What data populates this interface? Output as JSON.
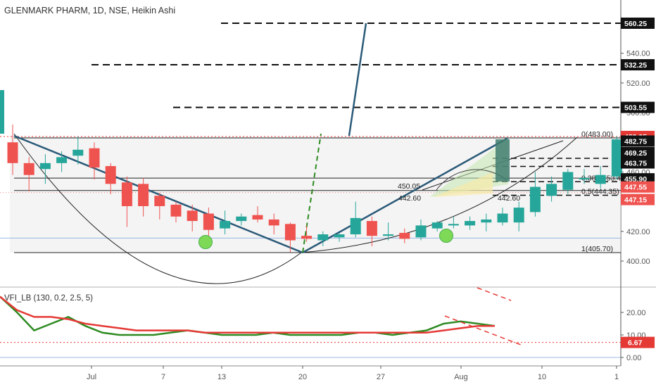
{
  "header": {
    "title": "GLENMARK PHARM, 1D, NSE, Heikin Ashi"
  },
  "indicator": {
    "title": "VFI_LB (130, 0.2, 2.5, 5)"
  },
  "colors": {
    "up": "#26a69a",
    "down": "#ef5350",
    "vfi": "#2e8b22",
    "signal": "#e53935"
  },
  "chart_data": [
    {
      "type": "candlestick",
      "title": "GLENMARK PHARM, 1D, NSE, Heikin Ashi",
      "x_labels": [
        "Jul",
        "7",
        "13",
        "20",
        "27",
        "Aug",
        "10",
        "1"
      ],
      "y_ticks": [
        400.0,
        420.0,
        440.0,
        460.0,
        480.0,
        500.0,
        520.0,
        540.0
      ],
      "ylim": [
        386,
        572
      ],
      "candles": [
        {
          "o": 480,
          "h": 492,
          "l": 458,
          "c": 466
        },
        {
          "o": 466,
          "h": 470,
          "l": 447,
          "c": 458
        },
        {
          "o": 462,
          "h": 472,
          "l": 452,
          "c": 466
        },
        {
          "o": 466,
          "h": 474,
          "l": 460,
          "c": 470
        },
        {
          "o": 471,
          "h": 484,
          "l": 465,
          "c": 475
        },
        {
          "o": 476,
          "h": 480,
          "l": 455,
          "c": 463
        },
        {
          "o": 464,
          "h": 466,
          "l": 445,
          "c": 452
        },
        {
          "o": 453,
          "h": 457,
          "l": 423,
          "c": 437
        },
        {
          "o": 452,
          "h": 456,
          "l": 430,
          "c": 437
        },
        {
          "o": 444,
          "h": 446,
          "l": 428,
          "c": 437
        },
        {
          "o": 438,
          "h": 440,
          "l": 426,
          "c": 430
        },
        {
          "o": 434,
          "h": 438,
          "l": 420,
          "c": 427
        },
        {
          "o": 432,
          "h": 436,
          "l": 416,
          "c": 421
        },
        {
          "o": 422,
          "h": 434,
          "l": 418,
          "c": 427
        },
        {
          "o": 427,
          "h": 432,
          "l": 424,
          "c": 430
        },
        {
          "o": 431,
          "h": 437,
          "l": 426,
          "c": 428
        },
        {
          "o": 428,
          "h": 432,
          "l": 418,
          "c": 424
        },
        {
          "o": 425,
          "h": 426,
          "l": 406,
          "c": 414
        },
        {
          "o": 417,
          "h": 424,
          "l": 413,
          "c": 415
        },
        {
          "o": 414,
          "h": 420,
          "l": 410,
          "c": 418
        },
        {
          "o": 416,
          "h": 419,
          "l": 413,
          "c": 418
        },
        {
          "o": 418,
          "h": 440,
          "l": 416,
          "c": 429
        },
        {
          "o": 427,
          "h": 430,
          "l": 410,
          "c": 417
        },
        {
          "o": 417,
          "h": 426,
          "l": 414,
          "c": 418
        },
        {
          "o": 419,
          "h": 422,
          "l": 412,
          "c": 415
        },
        {
          "o": 416,
          "h": 428,
          "l": 414,
          "c": 424
        },
        {
          "o": 422,
          "h": 427,
          "l": 420,
          "c": 426
        },
        {
          "o": 424,
          "h": 430,
          "l": 422,
          "c": 425
        },
        {
          "o": 424,
          "h": 430,
          "l": 421,
          "c": 427
        },
        {
          "o": 426,
          "h": 432,
          "l": 420,
          "c": 428
        },
        {
          "o": 426,
          "h": 436,
          "l": 424,
          "c": 432
        },
        {
          "o": 426,
          "h": 440,
          "l": 420,
          "c": 436
        },
        {
          "o": 433,
          "h": 460,
          "l": 430,
          "c": 450
        },
        {
          "o": 444,
          "h": 457,
          "l": 440,
          "c": 452
        },
        {
          "o": 448,
          "h": 462,
          "l": 445,
          "c": 460
        },
        {
          "o": 455,
          "h": 462,
          "l": 452,
          "c": 456
        },
        {
          "o": 452,
          "h": 464,
          "l": 449,
          "c": 458
        },
        {
          "o": 457,
          "h": 484,
          "l": 455,
          "c": 482
        }
      ],
      "price_labels": [
        "560.25",
        "532.25",
        "503.55",
        "483.95",
        "482.75",
        "469.25",
        "463.75",
        "455.90",
        "447.55",
        "447.15"
      ],
      "price_label_values": [
        560.25,
        532.25,
        503.55,
        483.95,
        482.75,
        469.25,
        463.75,
        455.9,
        447.55,
        447.15
      ],
      "target_levels": [
        560.25,
        532.25,
        503.55
      ],
      "fib_levels": [
        {
          "label": "0(483.00)",
          "value": 483.0
        },
        {
          "label": "0.382(453.45)",
          "value": 453.45
        },
        {
          "label": "0.5(444.35)",
          "value": 444.35
        },
        {
          "label": "1(405.70)",
          "value": 405.7
        }
      ],
      "annotations": [
        "450.05",
        "442.60",
        "442.60"
      ]
    },
    {
      "type": "line",
      "title": "VFI_LB (130, 0.2, 2.5, 5)",
      "y_ticks": [
        0.0,
        10.0,
        20.0
      ],
      "ylim": [
        -3,
        28
      ],
      "price_labels": [
        "6.67"
      ],
      "series": [
        {
          "values": [
            27,
            20,
            12,
            15,
            18,
            14,
            11,
            10,
            10,
            10,
            11,
            12,
            11,
            10,
            10,
            10,
            11,
            10,
            10,
            10,
            10,
            11,
            11,
            10,
            11,
            12,
            15,
            16,
            15,
            14
          ]
        },
        {
          "values": [
            27,
            21,
            18,
            18,
            17,
            15,
            14,
            13,
            12,
            12,
            12,
            12,
            11,
            11,
            11,
            11,
            11,
            11,
            11,
            11,
            11,
            11,
            11,
            11,
            11,
            11,
            12,
            13,
            14,
            14
          ]
        }
      ]
    }
  ]
}
